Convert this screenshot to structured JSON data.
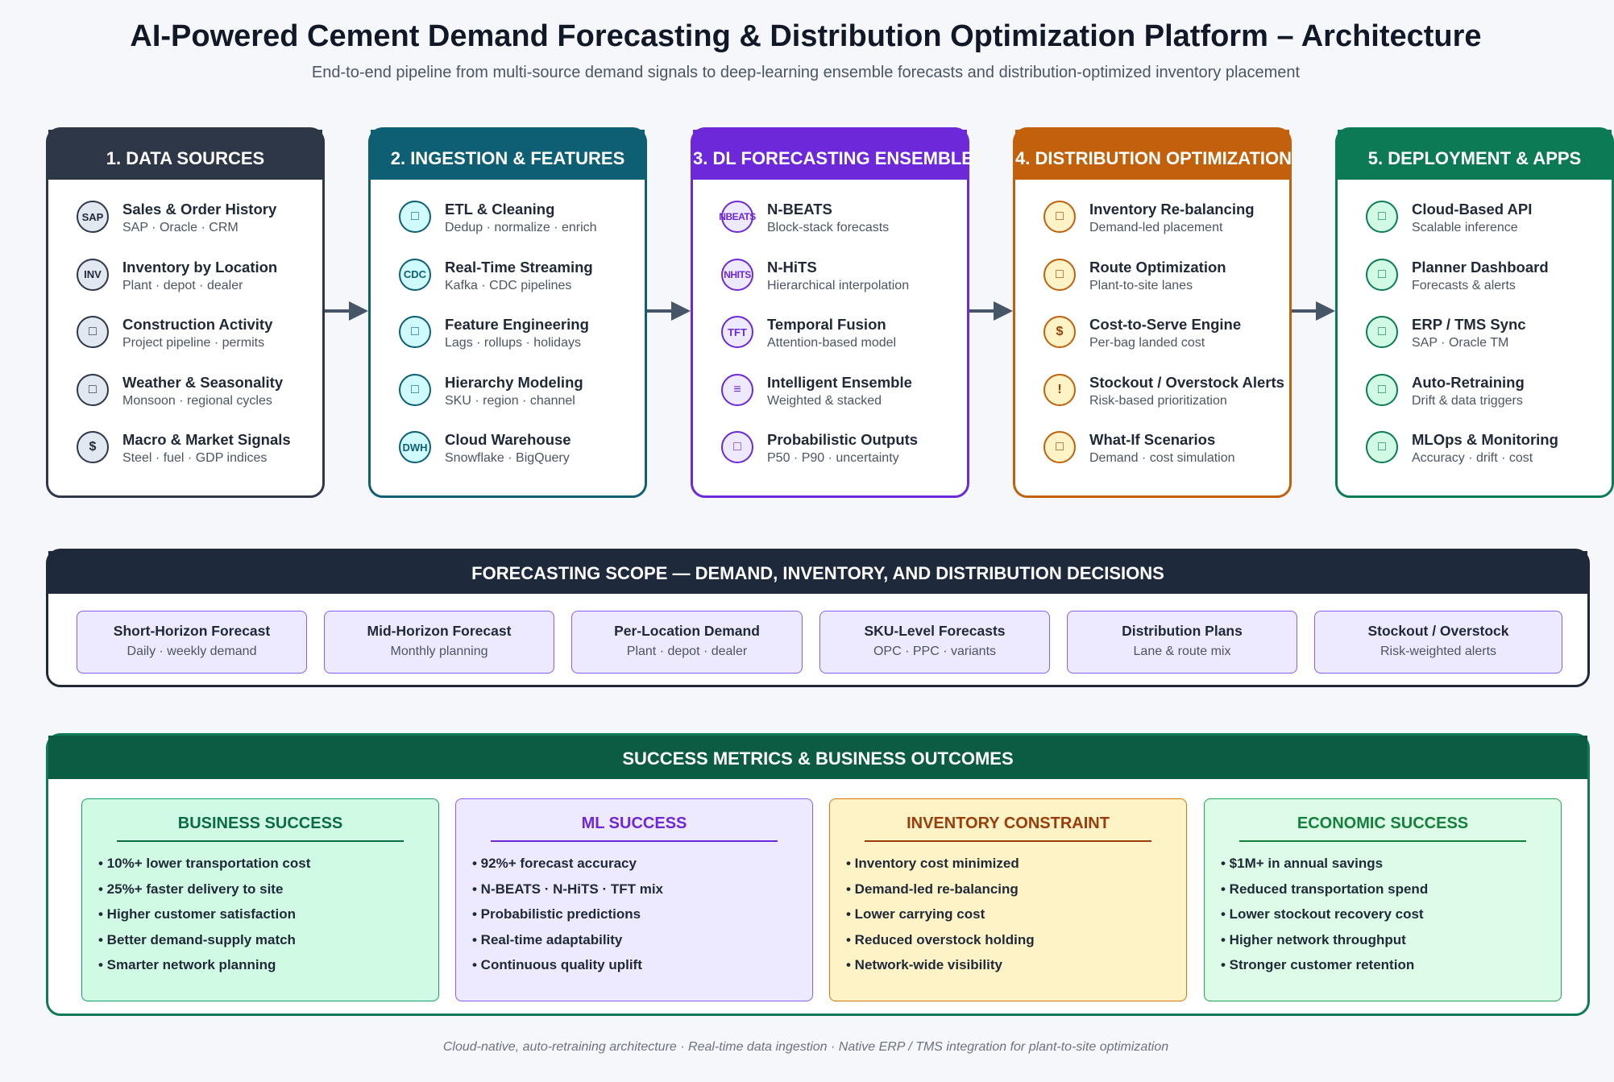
{
  "header": {
    "title": "AI-Powered Cement Demand Forecasting & Distribution Optimization Platform – Architecture",
    "subtitle": "End-to-end pipeline from multi-source demand signals to deep-learning ensemble forecasts and distribution-optimized inventory placement"
  },
  "columns": [
    {
      "title": "1. DATA SOURCES",
      "color": "#2d3748",
      "items": [
        {
          "icon": "SAP",
          "icon_name": "sap-icon",
          "title": "Sales & Order History",
          "sub": "SAP · Oracle · CRM"
        },
        {
          "icon": "INV",
          "icon_name": "inventory-icon",
          "title": "Inventory by Location",
          "sub": "Plant · depot · dealer"
        },
        {
          "icon": "□",
          "icon_name": "construction-icon",
          "title": "Construction Activity",
          "sub": "Project pipeline · permits"
        },
        {
          "icon": "□",
          "icon_name": "weather-icon",
          "title": "Weather & Seasonality",
          "sub": "Monsoon · regional cycles"
        },
        {
          "icon": "$",
          "icon_name": "dollar-icon",
          "title": "Macro & Market Signals",
          "sub": "Steel · fuel · GDP indices"
        }
      ]
    },
    {
      "title": "2. INGESTION & FEATURES",
      "color": "#0e5f73",
      "items": [
        {
          "icon": "□",
          "icon_name": "cleaning-icon",
          "title": "ETL & Cleaning",
          "sub": "Dedup · normalize · enrich"
        },
        {
          "icon": "CDC",
          "icon_name": "cdc-icon",
          "title": "Real-Time Streaming",
          "sub": "Kafka · CDC pipelines"
        },
        {
          "icon": "□",
          "icon_name": "feature-icon",
          "title": "Feature Engineering",
          "sub": "Lags · rollups · holidays"
        },
        {
          "icon": "□",
          "icon_name": "hierarchy-icon",
          "title": "Hierarchy Modeling",
          "sub": "SKU · region · channel"
        },
        {
          "icon": "DWH",
          "icon_name": "warehouse-icon",
          "title": "Cloud Warehouse",
          "sub": "Snowflake · BigQuery"
        }
      ]
    },
    {
      "title": "3. DL FORECASTING ENSEMBLE",
      "color": "#6d28d9",
      "items": [
        {
          "icon": "NBEATS",
          "icon_name": "nbeats-icon",
          "title": "N-BEATS",
          "sub": "Block-stack forecasts"
        },
        {
          "icon": "NHITS",
          "icon_name": "nhits-icon",
          "title": "N-HiTS",
          "sub": "Hierarchical interpolation"
        },
        {
          "icon": "TFT",
          "icon_name": "tft-icon",
          "title": "Temporal Fusion",
          "sub": "Attention-based model"
        },
        {
          "icon": "≡",
          "icon_name": "ensemble-icon",
          "title": "Intelligent Ensemble",
          "sub": "Weighted & stacked"
        },
        {
          "icon": "□",
          "icon_name": "probability-icon",
          "title": "Probabilistic Outputs",
          "sub": "P50 · P90 · uncertainty"
        }
      ]
    },
    {
      "title": "4. DISTRIBUTION OPTIMIZATION",
      "color": "#c2600c",
      "items": [
        {
          "icon": "□",
          "icon_name": "rebalance-icon",
          "title": "Inventory Re-balancing",
          "sub": "Demand-led placement"
        },
        {
          "icon": "□",
          "icon_name": "route-icon",
          "title": "Route Optimization",
          "sub": "Plant-to-site lanes"
        },
        {
          "icon": "$",
          "icon_name": "dollar-icon",
          "title": "Cost-to-Serve Engine",
          "sub": "Per-bag landed cost"
        },
        {
          "icon": "!",
          "icon_name": "alert-icon",
          "title": "Stockout / Overstock Alerts",
          "sub": "Risk-based prioritization"
        },
        {
          "icon": "□",
          "icon_name": "scenario-icon",
          "title": "What-If Scenarios",
          "sub": "Demand · cost simulation"
        }
      ]
    },
    {
      "title": "5. DEPLOYMENT & APPS",
      "color": "#0b7a55",
      "items": [
        {
          "icon": "□",
          "icon_name": "cloud-icon",
          "title": "Cloud-Based API",
          "sub": "Scalable inference"
        },
        {
          "icon": "□",
          "icon_name": "dashboard-icon",
          "title": "Planner Dashboard",
          "sub": "Forecasts & alerts"
        },
        {
          "icon": "□",
          "icon_name": "sync-icon",
          "title": "ERP / TMS Sync",
          "sub": "SAP · Oracle TM"
        },
        {
          "icon": "□",
          "icon_name": "retrain-icon",
          "title": "Auto-Retraining",
          "sub": "Drift & data triggers"
        },
        {
          "icon": "□",
          "icon_name": "monitoring-icon",
          "title": "MLOps & Monitoring",
          "sub": "Accuracy · drift · cost"
        }
      ]
    }
  ],
  "scope": {
    "title": "FORECASTING SCOPE — DEMAND, INVENTORY, AND DISTRIBUTION DECISIONS",
    "cards": [
      {
        "title": "Short-Horizon Forecast",
        "sub": "Daily · weekly demand"
      },
      {
        "title": "Mid-Horizon Forecast",
        "sub": "Monthly planning"
      },
      {
        "title": "Per-Location Demand",
        "sub": "Plant · depot · dealer"
      },
      {
        "title": "SKU-Level Forecasts",
        "sub": "OPC · PPC · variants"
      },
      {
        "title": "Distribution Plans",
        "sub": "Lane & route mix"
      },
      {
        "title": "Stockout / Overstock",
        "sub": "Risk-weighted alerts"
      }
    ]
  },
  "metrics": {
    "title": "SUCCESS METRICS & BUSINESS OUTCOMES",
    "cards": [
      {
        "title": "BUSINESS SUCCESS",
        "bg": "#d1fae5",
        "border": "#10a06b",
        "title_color": "#0b6b47",
        "items": [
          "• 10%+ lower transportation cost",
          "• 25%+ faster delivery to site",
          "• Higher customer satisfaction",
          "• Better demand-supply match",
          "• Smarter network planning"
        ]
      },
      {
        "title": "ML SUCCESS",
        "bg": "#ede9fe",
        "border": "#8b5cf6",
        "title_color": "#6d28d9",
        "items": [
          "• 92%+ forecast accuracy",
          "• N-BEATS · N-HiTS · TFT mix",
          "• Probabilistic predictions",
          "• Real-time adaptability",
          "• Continuous quality uplift"
        ]
      },
      {
        "title": "INVENTORY CONSTRAINT",
        "bg": "#fef3c7",
        "border": "#d97706",
        "title_color": "#9a3d0a",
        "items": [
          "• Inventory cost minimized",
          "• Demand-led re-balancing",
          "• Lower carrying cost",
          "• Reduced overstock holding",
          "• Network-wide visibility"
        ]
      },
      {
        "title": "ECONOMIC SUCCESS",
        "bg": "#dcfce7",
        "border": "#22a35a",
        "title_color": "#15803d",
        "items": [
          "• $1M+ in annual savings",
          "• Reduced transportation spend",
          "• Lower stockout recovery cost",
          "• Higher network throughput",
          "• Stronger customer retention"
        ]
      }
    ]
  },
  "footer": "Cloud-native, auto-retraining architecture · Real-time data ingestion · Native ERP / TMS integration for plant-to-site optimization"
}
